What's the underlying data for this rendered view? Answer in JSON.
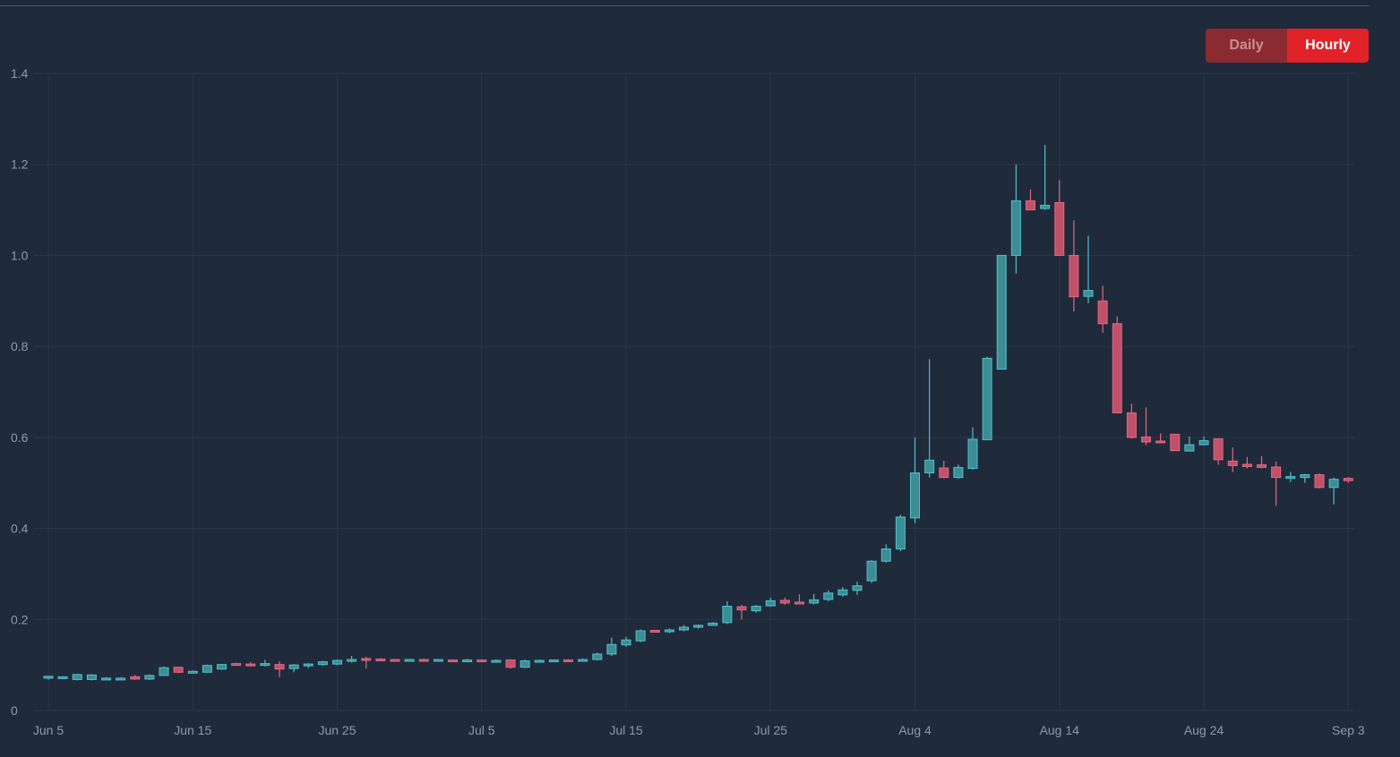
{
  "controls": {
    "daily_label": "Daily",
    "hourly_label": "Hourly",
    "active": "hourly"
  },
  "chart_data": {
    "type": "candlestick",
    "grid": true,
    "legend": "none",
    "ylim": [
      0,
      1.4
    ],
    "y_ticks": [
      "0",
      "0.2",
      "0.4",
      "0.6",
      "0.8",
      "1.0",
      "1.2",
      "1.4"
    ],
    "x_ticks": [
      "Jun 5",
      "Jun 15",
      "Jun 25",
      "Jul 5",
      "Jul 15",
      "Jul 25",
      "Aug 4",
      "Aug 14",
      "Aug 24",
      "Sep 3"
    ],
    "colors": {
      "up": "#3d8d95",
      "down": "#c25069",
      "up_edge": "#4fc2c9",
      "down_edge": "#e06a82"
    },
    "candles": [
      {
        "date": "Jun 5",
        "o": 0.071,
        "h": 0.076,
        "l": 0.068,
        "c": 0.075
      },
      {
        "date": "Jun 6",
        "o": 0.072,
        "h": 0.075,
        "l": 0.069,
        "c": 0.074
      },
      {
        "date": "Jun 7",
        "o": 0.068,
        "h": 0.08,
        "l": 0.066,
        "c": 0.079
      },
      {
        "date": "Jun 8",
        "o": 0.068,
        "h": 0.08,
        "l": 0.066,
        "c": 0.078
      },
      {
        "date": "Jun 9",
        "o": 0.069,
        "h": 0.073,
        "l": 0.067,
        "c": 0.071
      },
      {
        "date": "Jun 10",
        "o": 0.07,
        "h": 0.073,
        "l": 0.068,
        "c": 0.071
      },
      {
        "date": "Jun 11",
        "o": 0.074,
        "h": 0.078,
        "l": 0.067,
        "c": 0.069
      },
      {
        "date": "Jun 12",
        "o": 0.069,
        "h": 0.079,
        "l": 0.067,
        "c": 0.077
      },
      {
        "date": "Jun 13",
        "o": 0.077,
        "h": 0.097,
        "l": 0.076,
        "c": 0.094
      },
      {
        "date": "Jun 14",
        "o": 0.095,
        "h": 0.096,
        "l": 0.082,
        "c": 0.084
      },
      {
        "date": "Jun 15",
        "o": 0.084,
        "h": 0.088,
        "l": 0.082,
        "c": 0.086
      },
      {
        "date": "Jun 16",
        "o": 0.084,
        "h": 0.101,
        "l": 0.083,
        "c": 0.099
      },
      {
        "date": "Jun 17",
        "o": 0.091,
        "h": 0.102,
        "l": 0.089,
        "c": 0.101
      },
      {
        "date": "Jun 18",
        "o": 0.103,
        "h": 0.105,
        "l": 0.098,
        "c": 0.1
      },
      {
        "date": "Jun 19",
        "o": 0.102,
        "h": 0.106,
        "l": 0.097,
        "c": 0.099
      },
      {
        "date": "Jun 20",
        "o": 0.1,
        "h": 0.111,
        "l": 0.097,
        "c": 0.103
      },
      {
        "date": "Jun 21",
        "o": 0.101,
        "h": 0.108,
        "l": 0.073,
        "c": 0.091
      },
      {
        "date": "Jun 22",
        "o": 0.092,
        "h": 0.102,
        "l": 0.084,
        "c": 0.1
      },
      {
        "date": "Jun 23",
        "o": 0.098,
        "h": 0.104,
        "l": 0.093,
        "c": 0.102
      },
      {
        "date": "Jun 24",
        "o": 0.101,
        "h": 0.109,
        "l": 0.098,
        "c": 0.107
      },
      {
        "date": "Jun 25",
        "o": 0.102,
        "h": 0.112,
        "l": 0.1,
        "c": 0.11
      },
      {
        "date": "Jun 26",
        "o": 0.108,
        "h": 0.12,
        "l": 0.105,
        "c": 0.112
      },
      {
        "date": "Jun 27",
        "o": 0.114,
        "h": 0.118,
        "l": 0.092,
        "c": 0.112
      },
      {
        "date": "Jun 28",
        "o": 0.113,
        "h": 0.115,
        "l": 0.11,
        "c": 0.111
      },
      {
        "date": "Jun 29",
        "o": 0.112,
        "h": 0.113,
        "l": 0.109,
        "c": 0.111
      },
      {
        "date": "Jun 30",
        "o": 0.11,
        "h": 0.113,
        "l": 0.108,
        "c": 0.112
      },
      {
        "date": "Jul 1",
        "o": 0.112,
        "h": 0.114,
        "l": 0.11,
        "c": 0.111
      },
      {
        "date": "Jul 2",
        "o": 0.11,
        "h": 0.113,
        "l": 0.108,
        "c": 0.112
      },
      {
        "date": "Jul 3",
        "o": 0.111,
        "h": 0.112,
        "l": 0.109,
        "c": 0.11
      },
      {
        "date": "Jul 4",
        "o": 0.11,
        "h": 0.113,
        "l": 0.108,
        "c": 0.111
      },
      {
        "date": "Jul 5",
        "o": 0.111,
        "h": 0.112,
        "l": 0.107,
        "c": 0.108
      },
      {
        "date": "Jul 6",
        "o": 0.108,
        "h": 0.112,
        "l": 0.106,
        "c": 0.11
      },
      {
        "date": "Jul 7",
        "o": 0.111,
        "h": 0.112,
        "l": 0.092,
        "c": 0.095
      },
      {
        "date": "Jul 8",
        "o": 0.095,
        "h": 0.112,
        "l": 0.093,
        "c": 0.109
      },
      {
        "date": "Jul 9",
        "o": 0.109,
        "h": 0.112,
        "l": 0.107,
        "c": 0.11
      },
      {
        "date": "Jul 10",
        "o": 0.11,
        "h": 0.112,
        "l": 0.108,
        "c": 0.111
      },
      {
        "date": "Jul 11",
        "o": 0.111,
        "h": 0.113,
        "l": 0.109,
        "c": 0.11
      },
      {
        "date": "Jul 12",
        "o": 0.11,
        "h": 0.114,
        "l": 0.108,
        "c": 0.112
      },
      {
        "date": "Jul 13",
        "o": 0.112,
        "h": 0.127,
        "l": 0.11,
        "c": 0.124
      },
      {
        "date": "Jul 14",
        "o": 0.124,
        "h": 0.16,
        "l": 0.12,
        "c": 0.145
      },
      {
        "date": "Jul 15",
        "o": 0.144,
        "h": 0.162,
        "l": 0.14,
        "c": 0.155
      },
      {
        "date": "Jul 16",
        "o": 0.153,
        "h": 0.178,
        "l": 0.15,
        "c": 0.175
      },
      {
        "date": "Jul 17",
        "o": 0.176,
        "h": 0.177,
        "l": 0.171,
        "c": 0.174
      },
      {
        "date": "Jul 18",
        "o": 0.173,
        "h": 0.18,
        "l": 0.17,
        "c": 0.177
      },
      {
        "date": "Jul 19",
        "o": 0.177,
        "h": 0.188,
        "l": 0.174,
        "c": 0.183
      },
      {
        "date": "Jul 20",
        "o": 0.183,
        "h": 0.189,
        "l": 0.18,
        "c": 0.187
      },
      {
        "date": "Jul 21",
        "o": 0.187,
        "h": 0.194,
        "l": 0.186,
        "c": 0.192
      },
      {
        "date": "Jul 22",
        "o": 0.193,
        "h": 0.24,
        "l": 0.19,
        "c": 0.229
      },
      {
        "date": "Jul 23",
        "o": 0.228,
        "h": 0.232,
        "l": 0.2,
        "c": 0.221
      },
      {
        "date": "Jul 24",
        "o": 0.219,
        "h": 0.232,
        "l": 0.215,
        "c": 0.229
      },
      {
        "date": "Jul 25",
        "o": 0.23,
        "h": 0.248,
        "l": 0.228,
        "c": 0.241
      },
      {
        "date": "Jul 26",
        "o": 0.242,
        "h": 0.248,
        "l": 0.232,
        "c": 0.236
      },
      {
        "date": "Jul 27",
        "o": 0.238,
        "h": 0.255,
        "l": 0.233,
        "c": 0.237
      },
      {
        "date": "Jul 28",
        "o": 0.236,
        "h": 0.256,
        "l": 0.233,
        "c": 0.243
      },
      {
        "date": "Jul 29",
        "o": 0.244,
        "h": 0.264,
        "l": 0.24,
        "c": 0.258
      },
      {
        "date": "Jul 30",
        "o": 0.254,
        "h": 0.271,
        "l": 0.25,
        "c": 0.265
      },
      {
        "date": "Jul 31",
        "o": 0.264,
        "h": 0.283,
        "l": 0.254,
        "c": 0.274
      },
      {
        "date": "Aug 1",
        "o": 0.285,
        "h": 0.33,
        "l": 0.28,
        "c": 0.328
      },
      {
        "date": "Aug 2",
        "o": 0.328,
        "h": 0.365,
        "l": 0.325,
        "c": 0.355
      },
      {
        "date": "Aug 3",
        "o": 0.355,
        "h": 0.43,
        "l": 0.35,
        "c": 0.425
      },
      {
        "date": "Aug 4",
        "o": 0.423,
        "h": 0.6,
        "l": 0.412,
        "c": 0.522
      },
      {
        "date": "Aug 5",
        "o": 0.522,
        "h": 0.772,
        "l": 0.512,
        "c": 0.55
      },
      {
        "date": "Aug 6",
        "o": 0.533,
        "h": 0.549,
        "l": 0.51,
        "c": 0.512
      },
      {
        "date": "Aug 7",
        "o": 0.512,
        "h": 0.54,
        "l": 0.509,
        "c": 0.534
      },
      {
        "date": "Aug 8",
        "o": 0.532,
        "h": 0.622,
        "l": 0.529,
        "c": 0.596
      },
      {
        "date": "Aug 9",
        "o": 0.595,
        "h": 0.777,
        "l": 0.594,
        "c": 0.774
      },
      {
        "date": "Aug 10",
        "o": 0.75,
        "h": 1.0,
        "l": 0.75,
        "c": 1.0
      },
      {
        "date": "Aug 11",
        "o": 1.0,
        "h": 1.2,
        "l": 0.96,
        "c": 1.12
      },
      {
        "date": "Aug 12",
        "o": 1.12,
        "h": 1.145,
        "l": 1.1,
        "c": 1.1
      },
      {
        "date": "Aug 13",
        "o": 1.103,
        "h": 1.243,
        "l": 1.1,
        "c": 1.11
      },
      {
        "date": "Aug 14",
        "o": 1.116,
        "h": 1.165,
        "l": 1.0,
        "c": 1.0
      },
      {
        "date": "Aug 15",
        "o": 1.0,
        "h": 1.077,
        "l": 0.877,
        "c": 0.909
      },
      {
        "date": "Aug 16",
        "o": 0.91,
        "h": 1.043,
        "l": 0.895,
        "c": 0.923
      },
      {
        "date": "Aug 17",
        "o": 0.9,
        "h": 0.933,
        "l": 0.83,
        "c": 0.85
      },
      {
        "date": "Aug 18",
        "o": 0.85,
        "h": 0.866,
        "l": 0.653,
        "c": 0.654
      },
      {
        "date": "Aug 19",
        "o": 0.654,
        "h": 0.674,
        "l": 0.597,
        "c": 0.6
      },
      {
        "date": "Aug 20",
        "o": 0.601,
        "h": 0.666,
        "l": 0.583,
        "c": 0.59
      },
      {
        "date": "Aug 21",
        "o": 0.592,
        "h": 0.609,
        "l": 0.587,
        "c": 0.589
      },
      {
        "date": "Aug 22",
        "o": 0.607,
        "h": 0.608,
        "l": 0.57,
        "c": 0.571
      },
      {
        "date": "Aug 23",
        "o": 0.57,
        "h": 0.602,
        "l": 0.57,
        "c": 0.584
      },
      {
        "date": "Aug 24",
        "o": 0.584,
        "h": 0.602,
        "l": 0.582,
        "c": 0.593
      },
      {
        "date": "Aug 25",
        "o": 0.597,
        "h": 0.598,
        "l": 0.54,
        "c": 0.551
      },
      {
        "date": "Aug 26",
        "o": 0.548,
        "h": 0.578,
        "l": 0.524,
        "c": 0.538
      },
      {
        "date": "Aug 27",
        "o": 0.541,
        "h": 0.557,
        "l": 0.532,
        "c": 0.536
      },
      {
        "date": "Aug 28",
        "o": 0.54,
        "h": 0.559,
        "l": 0.532,
        "c": 0.534
      },
      {
        "date": "Aug 29",
        "o": 0.535,
        "h": 0.547,
        "l": 0.45,
        "c": 0.512
      },
      {
        "date": "Aug 30",
        "o": 0.512,
        "h": 0.524,
        "l": 0.502,
        "c": 0.514
      },
      {
        "date": "Aug 31",
        "o": 0.512,
        "h": 0.52,
        "l": 0.5,
        "c": 0.518
      },
      {
        "date": "Sep 1",
        "o": 0.518,
        "h": 0.521,
        "l": 0.488,
        "c": 0.49
      },
      {
        "date": "Sep 2",
        "o": 0.49,
        "h": 0.512,
        "l": 0.453,
        "c": 0.508
      },
      {
        "date": "Sep 3",
        "o": 0.51,
        "h": 0.513,
        "l": 0.5,
        "c": 0.505
      }
    ]
  }
}
